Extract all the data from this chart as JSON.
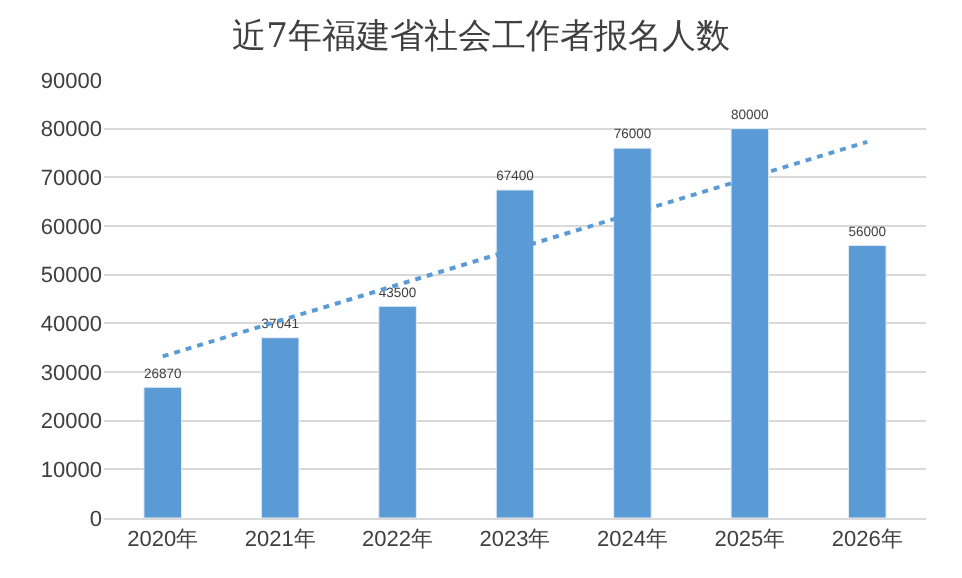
{
  "chart_data": {
    "type": "bar",
    "title": "近7年福建省社会工作者报名人数",
    "categories": [
      "2020年",
      "2021年",
      "2022年",
      "2023年",
      "2024年",
      "2025年",
      "2026年"
    ],
    "series": [
      {
        "color": "#5b9bd5",
        "values": [
          26870,
          37041,
          43500,
          67400,
          76000,
          80000,
          56000
        ],
        "value_labels": [
          "26870",
          "37041",
          "43500",
          "67400",
          "76000",
          "80000",
          "56000"
        ]
      },
      {
        "type": "line",
        "color": "#5b9bd5",
        "line_style": "dotted",
        "x": [
          "2020年",
          "2026年"
        ],
        "values": [
          33200,
          77300
        ]
      }
    ],
    "ylim": [
      0,
      90000
    ],
    "yticks": [
      0,
      10000,
      20000,
      30000,
      40000,
      50000,
      60000,
      70000,
      80000,
      90000
    ],
    "grid": "y"
  }
}
